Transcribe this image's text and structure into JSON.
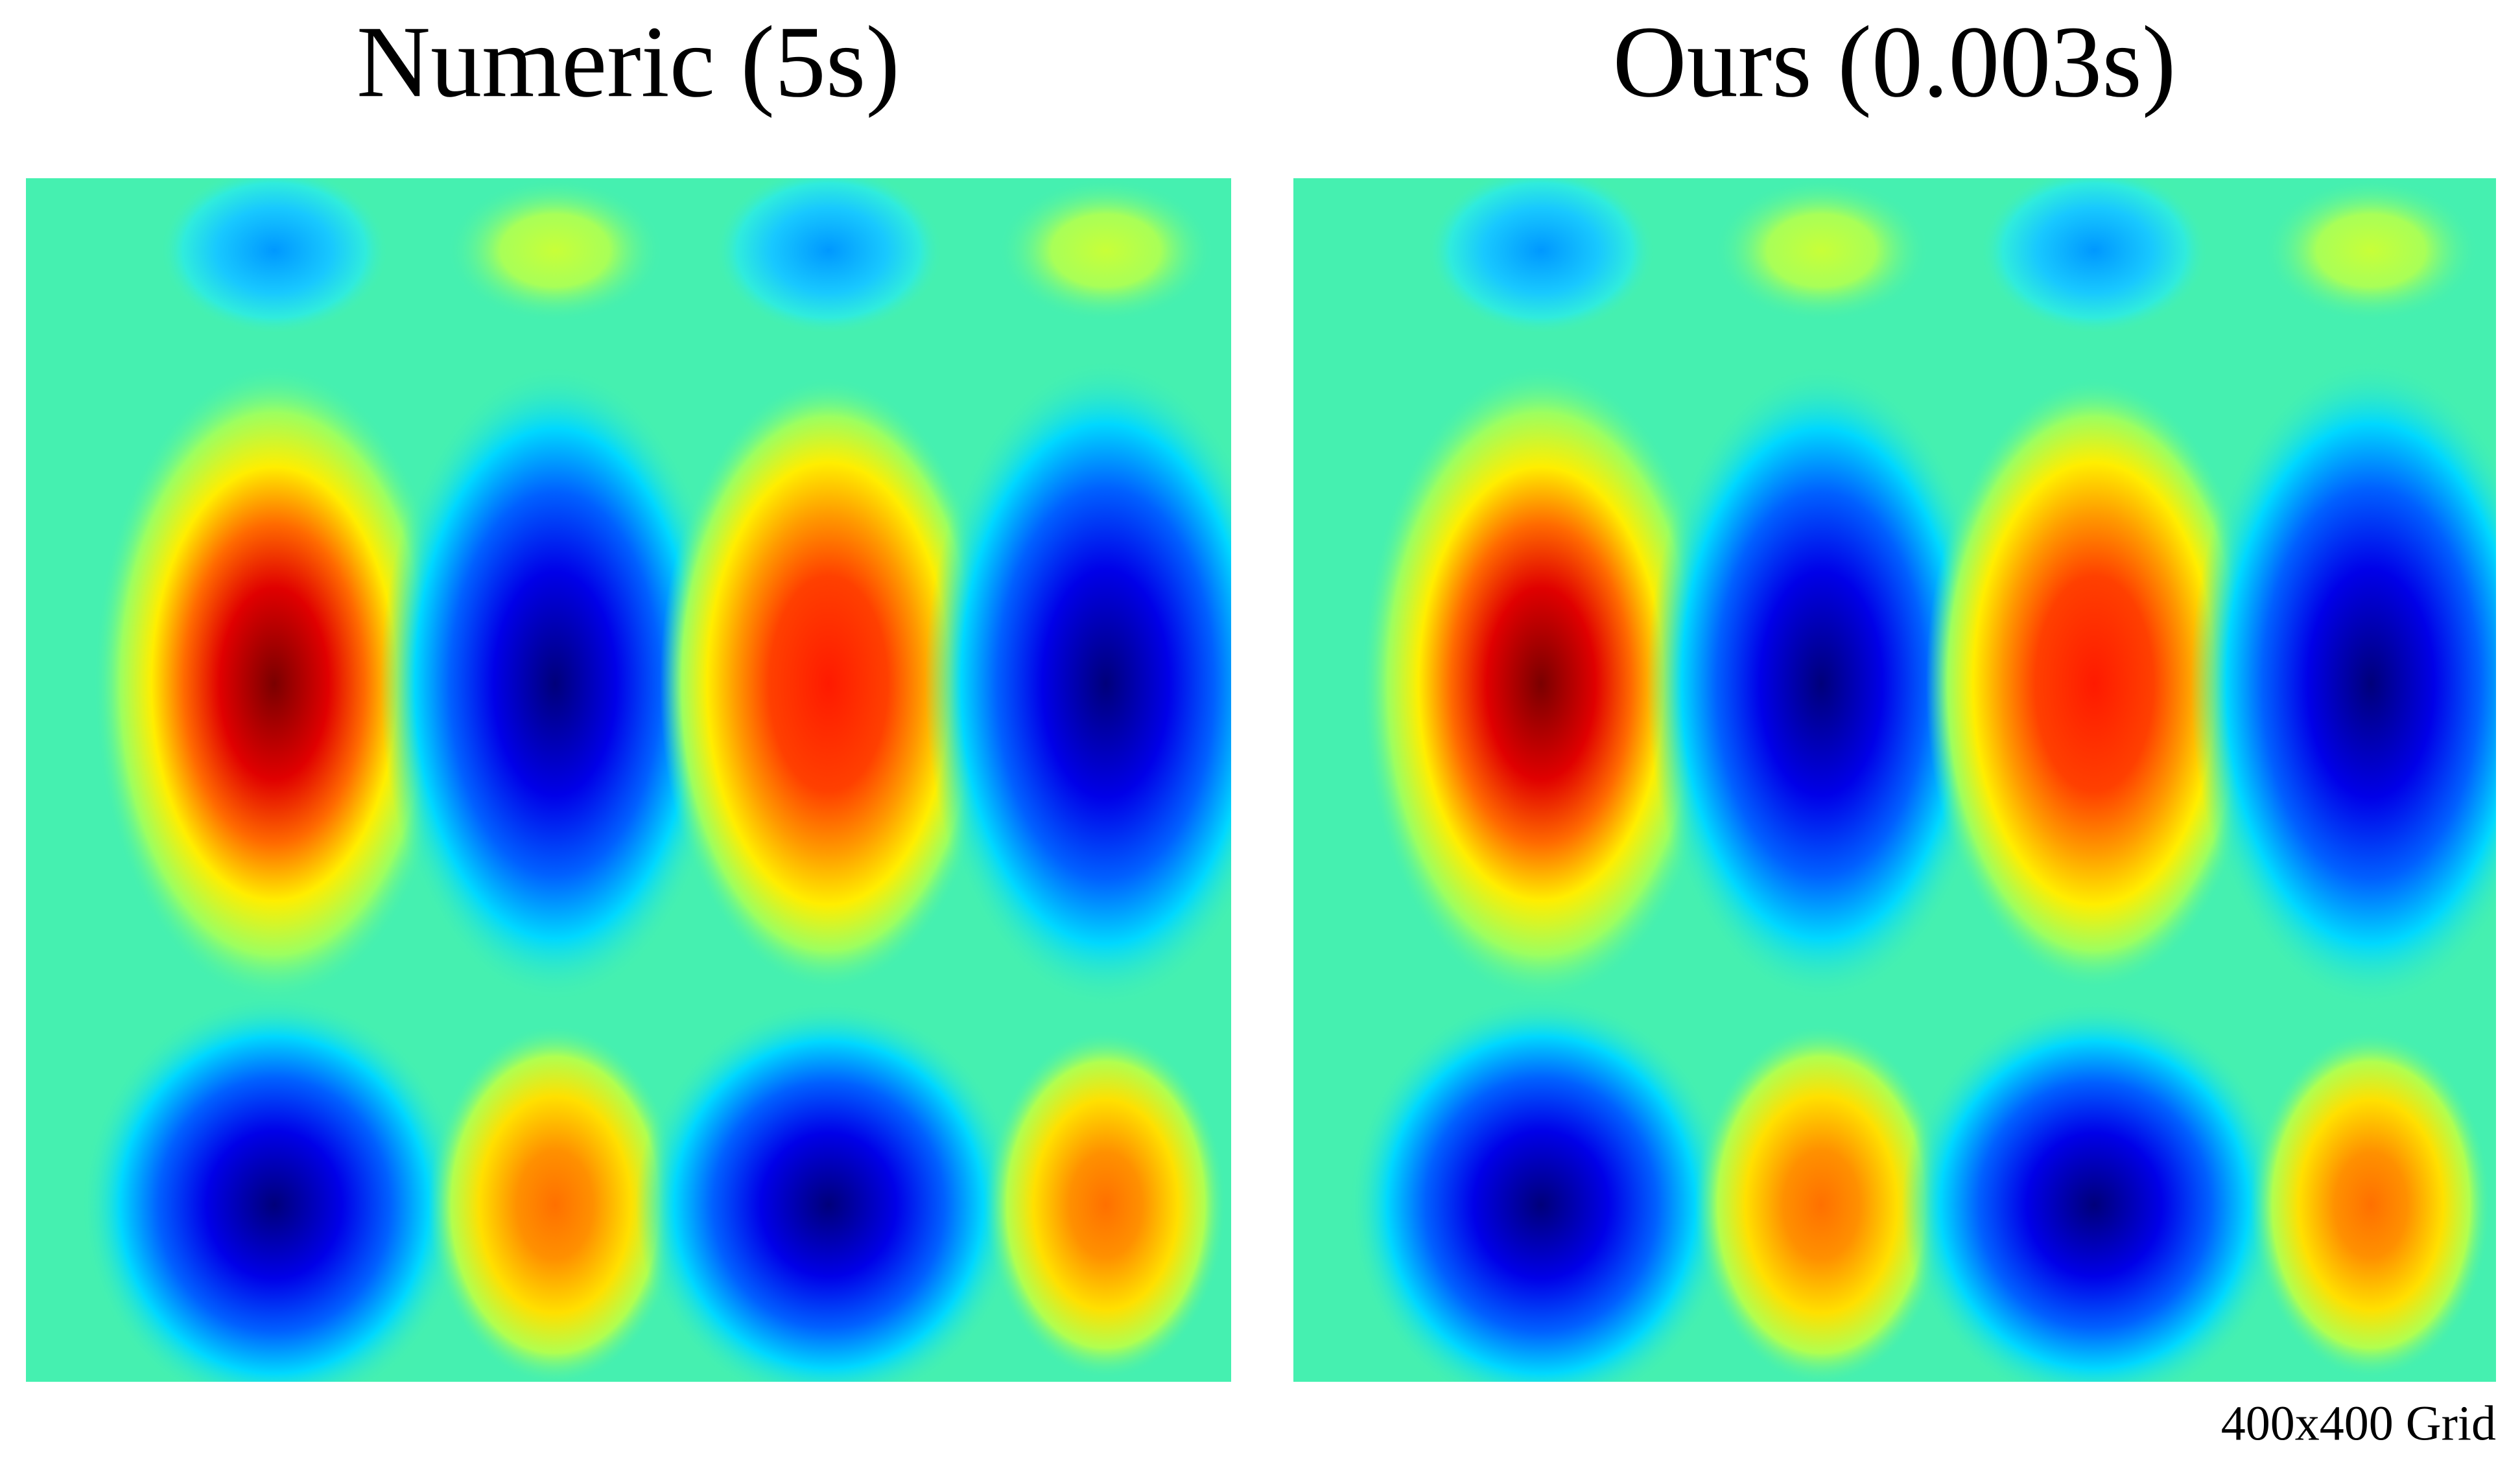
{
  "panels": [
    {
      "title": "Numeric (5s)"
    },
    {
      "title": "Ours (0.003s)"
    }
  ],
  "caption": "400x400 Grid"
}
